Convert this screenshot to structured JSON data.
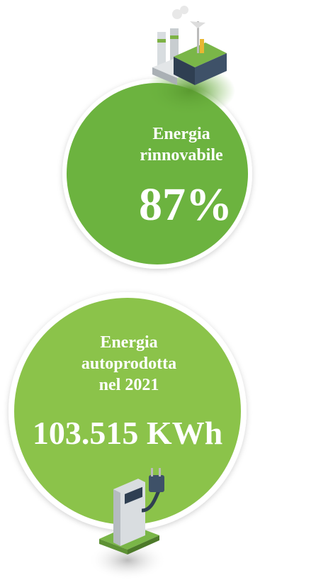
{
  "stats": [
    {
      "label_lines": [
        "Energia",
        "rinnovabile"
      ],
      "value": "87%"
    },
    {
      "label_lines": [
        "Energia",
        "autoprodotta",
        "nel 2021"
      ],
      "value": "103.515 KWh"
    }
  ]
}
